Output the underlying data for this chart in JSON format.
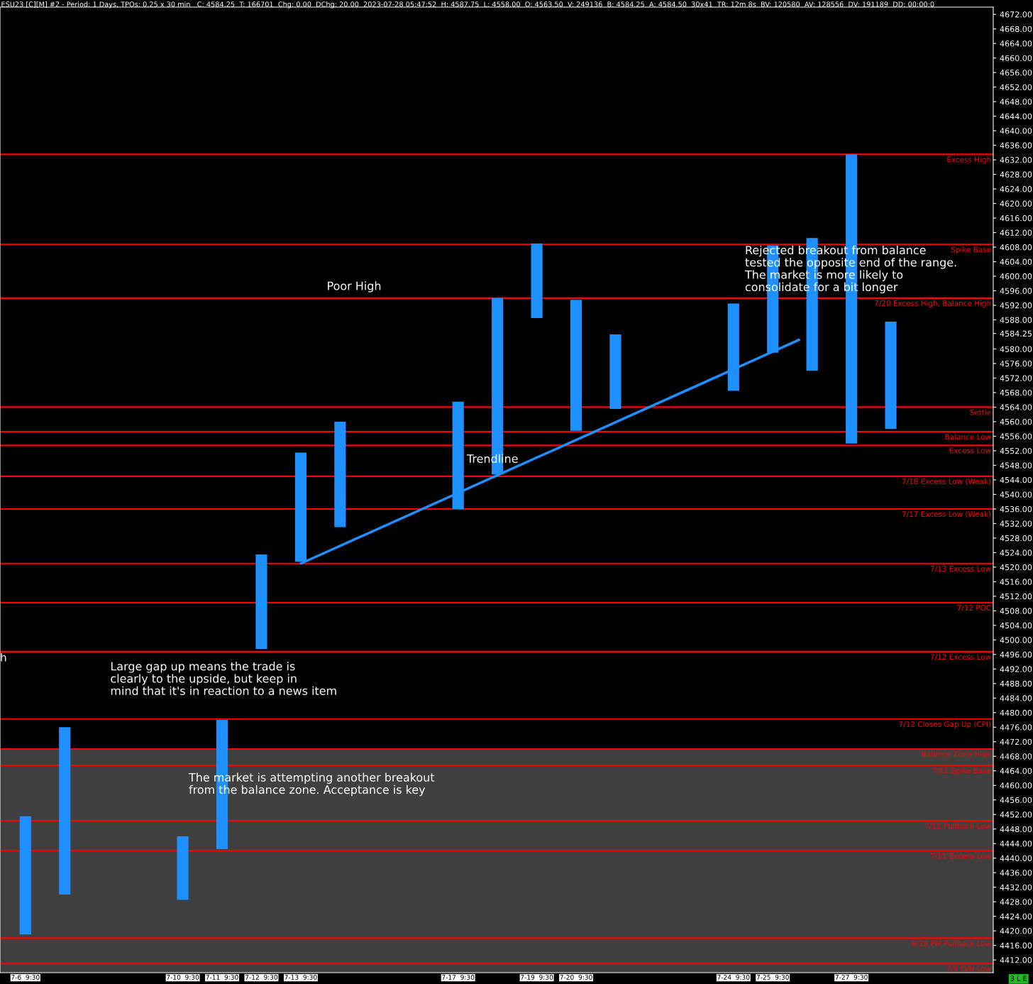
{
  "chart_data": {
    "type": "bar",
    "title": "ESU23 [C][M] #2 - Period: 1 Days, TPOs: 0.25 x 30 min   C: 4584.25  T: 166701  Chg: 0.00  DChg: 20.00  2023-07-28 05:47:52  H: 4587.75  L: 4558.00  O: 4563.50  V: 249136  B: 4584.25  A: 4584.50  30x41  TR: 12m 8s  BV: 120580  AV: 128556  DV: 191189  DD: 00:00:0",
    "x": [
      "2023-07-06T09:30",
      "2023-07-07T09:30",
      "2023-07-10T09:30",
      "2023-07-11T09:30",
      "2023-07-12T09:30",
      "2023-07-13T09:30",
      "2023-07-14T09:30",
      "2023-07-17T09:30",
      "2023-07-18T09:30",
      "2023-07-19T09:30",
      "2023-07-20T09:30",
      "2023-07-21T09:30",
      "2023-07-24T09:30",
      "2023-07-25T09:30",
      "2023-07-26T09:30",
      "2023-07-27T09:30",
      "2023-07-28T09:30"
    ],
    "xlim": [
      "2023-07-05T18:00",
      "2023-07-31T00:00"
    ],
    "xticks": [
      {
        "value": "2023-07-06T09:30",
        "label": "7-6  9:30"
      },
      {
        "value": "2023-07-10T09:30",
        "label": "7-10  9:30"
      },
      {
        "value": "2023-07-11T09:30",
        "label": "7-11  9:30"
      },
      {
        "value": "2023-07-12T09:30",
        "label": "7-12  9:30"
      },
      {
        "value": "2023-07-13T09:30",
        "label": "7-13  9:30"
      },
      {
        "value": "2023-07-17T09:30",
        "label": "7-17  9:30"
      },
      {
        "value": "2023-07-19T09:30",
        "label": "7-19  9:30"
      },
      {
        "value": "2023-07-20T09:30",
        "label": "7-20  9:30"
      },
      {
        "value": "2023-07-24T09:30",
        "label": "7-24  9:30"
      },
      {
        "value": "2023-07-25T09:30",
        "label": "7-25  9:30"
      },
      {
        "value": "2023-07-27T09:30",
        "label": "7-27  9:30"
      }
    ],
    "series": [
      {
        "color": "#1e90ff",
        "base": [
          4419,
          4430,
          4428.5,
          4442.5,
          4497.5,
          4521.5,
          4531,
          4536,
          4545.5,
          4588.5,
          4557.5,
          4563.5,
          4568.5,
          4579,
          4574,
          4554,
          4558
        ],
        "values": [
          32.5,
          46,
          17.5,
          35.5,
          26,
          30,
          29,
          29.5,
          48.5,
          20.5,
          36,
          20.5,
          24,
          29.5,
          36.5,
          79.5,
          29.5
        ]
      },
      {
        "type": "line",
        "color": "#1e90ff",
        "x": [
          "2023-07-13T09:30",
          "2023-07-26T01:30"
        ],
        "values": [
          4521,
          4582.5
        ]
      }
    ],
    "ylim": [
      4408.5,
      4674
    ],
    "yticks": [
      {
        "value": 4412,
        "label": "4412.00"
      },
      {
        "value": 4416,
        "label": "4416.00"
      },
      {
        "value": 4420,
        "label": "4420.00"
      },
      {
        "value": 4424,
        "label": "4424.00"
      },
      {
        "value": 4428,
        "label": "4428.00"
      },
      {
        "value": 4432,
        "label": "4432.00"
      },
      {
        "value": 4436,
        "label": "4436.00"
      },
      {
        "value": 4440,
        "label": "4440.00"
      },
      {
        "value": 4444,
        "label": "4444.00"
      },
      {
        "value": 4448,
        "label": "4448.00"
      },
      {
        "value": 4452,
        "label": "4452.00"
      },
      {
        "value": 4456,
        "label": "4456.00"
      },
      {
        "value": 4460,
        "label": "4460.00"
      },
      {
        "value": 4464,
        "label": "4464.00"
      },
      {
        "value": 4468,
        "label": "4468.00"
      },
      {
        "value": 4472,
        "label": "4472.00"
      },
      {
        "value": 4476,
        "label": "4476.00"
      },
      {
        "value": 4480,
        "label": "4480.00"
      },
      {
        "value": 4484,
        "label": "4484.00"
      },
      {
        "value": 4488,
        "label": "4488.00"
      },
      {
        "value": 4492,
        "label": "4492.00"
      },
      {
        "value": 4496,
        "label": "4496.00"
      },
      {
        "value": 4500,
        "label": "4500.00"
      },
      {
        "value": 4504,
        "label": "4504.00"
      },
      {
        "value": 4508,
        "label": "4508.00"
      },
      {
        "value": 4512,
        "label": "4512.00"
      },
      {
        "value": 4516,
        "label": "4516.00"
      },
      {
        "value": 4520,
        "label": "4520.00"
      },
      {
        "value": 4524,
        "label": "4524.00"
      },
      {
        "value": 4528,
        "label": "4528.00"
      },
      {
        "value": 4532,
        "label": "4532.00"
      },
      {
        "value": 4536,
        "label": "4536.00"
      },
      {
        "value": 4540,
        "label": "4540.00"
      },
      {
        "value": 4544,
        "label": "4544.00"
      },
      {
        "value": 4548,
        "label": "4548.00"
      },
      {
        "value": 4552,
        "label": "4552.00"
      },
      {
        "value": 4556,
        "label": "4556.00"
      },
      {
        "value": 4560,
        "label": "4560.00"
      },
      {
        "value": 4564,
        "label": "4564.00"
      },
      {
        "value": 4568,
        "label": "4568.00"
      },
      {
        "value": 4572,
        "label": "4572.00"
      },
      {
        "value": 4576,
        "label": "4576.00"
      },
      {
        "value": 4580,
        "label": "4580.00"
      },
      {
        "value": 4584.25,
        "label": "4584.25"
      },
      {
        "value": 4588,
        "label": "4588.00"
      },
      {
        "value": 4592,
        "label": "4592.00"
      },
      {
        "value": 4596,
        "label": "4596.00"
      },
      {
        "value": 4600,
        "label": "4600.00"
      },
      {
        "value": 4604,
        "label": "4604.00"
      },
      {
        "value": 4608,
        "label": "4608.00"
      },
      {
        "value": 4612,
        "label": "4612.00"
      },
      {
        "value": 4616,
        "label": "4616.00"
      },
      {
        "value": 4620,
        "label": "4620.00"
      },
      {
        "value": 4624,
        "label": "4624.00"
      },
      {
        "value": 4628,
        "label": "4628.00"
      },
      {
        "value": 4632,
        "label": "4632.00"
      },
      {
        "value": 4636,
        "label": "4636.00"
      },
      {
        "value": 4640,
        "label": "4640.00"
      },
      {
        "value": 4644,
        "label": "4644.00"
      },
      {
        "value": 4648,
        "label": "4648.00"
      },
      {
        "value": 4652,
        "label": "4652.00"
      },
      {
        "value": 4656,
        "label": "4656.00"
      },
      {
        "value": 4660,
        "label": "4660.00"
      },
      {
        "value": 4664,
        "label": "4664.00"
      },
      {
        "value": 4668,
        "label": "4668.00"
      },
      {
        "value": 4672,
        "label": "4672.00"
      }
    ],
    "bands": [
      {
        "axis": "y",
        "from": 4408.5,
        "to": 4470,
        "color": "#404040"
      }
    ],
    "ref_lines": [
      {
        "axis": "y",
        "value": 4633.5,
        "label": "Excess High",
        "color": "#ff0000"
      },
      {
        "axis": "y",
        "value": 4608.75,
        "label": "Spike Base",
        "color": "#ff0000"
      },
      {
        "axis": "y",
        "value": 4594,
        "label": "7/20 Excess High, Balance High",
        "color": "#ff0000"
      },
      {
        "axis": "y",
        "value": 4564,
        "label": "Settle",
        "color": "#ff0000"
      },
      {
        "axis": "y",
        "value": 4557.25,
        "label": "Balance Low",
        "color": "#ff0000"
      },
      {
        "axis": "y",
        "value": 4553.5,
        "label": "Excess Low",
        "color": "#ff0000"
      },
      {
        "axis": "y",
        "value": 4545,
        "label": "7/18 Excess Low (Weak)",
        "color": "#ff0000"
      },
      {
        "axis": "y",
        "value": 4536,
        "label": "7/17 Excess Low (Weak)",
        "color": "#ff0000"
      },
      {
        "axis": "y",
        "value": 4521,
        "label": "7/13 Excess Low",
        "color": "#ff0000"
      },
      {
        "axis": "y",
        "value": 4510.25,
        "label": "7/12 POC",
        "color": "#ff0000"
      },
      {
        "axis": "y",
        "value": 4496.75,
        "label": "7/12 Excess Low",
        "color": "#ff0000"
      },
      {
        "axis": "y",
        "value": 4478.25,
        "label": "7/12 Closes Gap Up (CPI)",
        "color": "#ff0000"
      },
      {
        "axis": "y",
        "value": 4470,
        "label": "Balance Zone High",
        "color": "#ff0000"
      },
      {
        "axis": "y",
        "value": 4465.5,
        "label": "7/11 Spike Base",
        "color": "#ff0000"
      },
      {
        "axis": "y",
        "value": 4450.25,
        "label": "7/11 Pullback Low",
        "color": "#ff0000"
      },
      {
        "axis": "y",
        "value": 4442,
        "label": "7/11 Excess Low",
        "color": "#ff0000"
      },
      {
        "axis": "y",
        "value": 4418,
        "label": "6/29 PM Pullback Low",
        "color": "#ff0000"
      },
      {
        "axis": "y",
        "value": 4411,
        "label": "7/9 O/N Low",
        "color": "#ff0000"
      }
    ],
    "annotations": [
      "Poor High",
      "Rejected breakout from balance\ntested the opposite end of the range.\nThe market is more likely to\nconsolidate for a bit longer",
      "Trendline",
      "Large gap up means the trade is\nclearly to the upside, but keep in\nmind that it's in reaction to a news item",
      "The market is attempting another breakout\nfrom the balance zone. Acceptance is key",
      "h",
      "3 L E"
    ],
    "grid": false
  }
}
